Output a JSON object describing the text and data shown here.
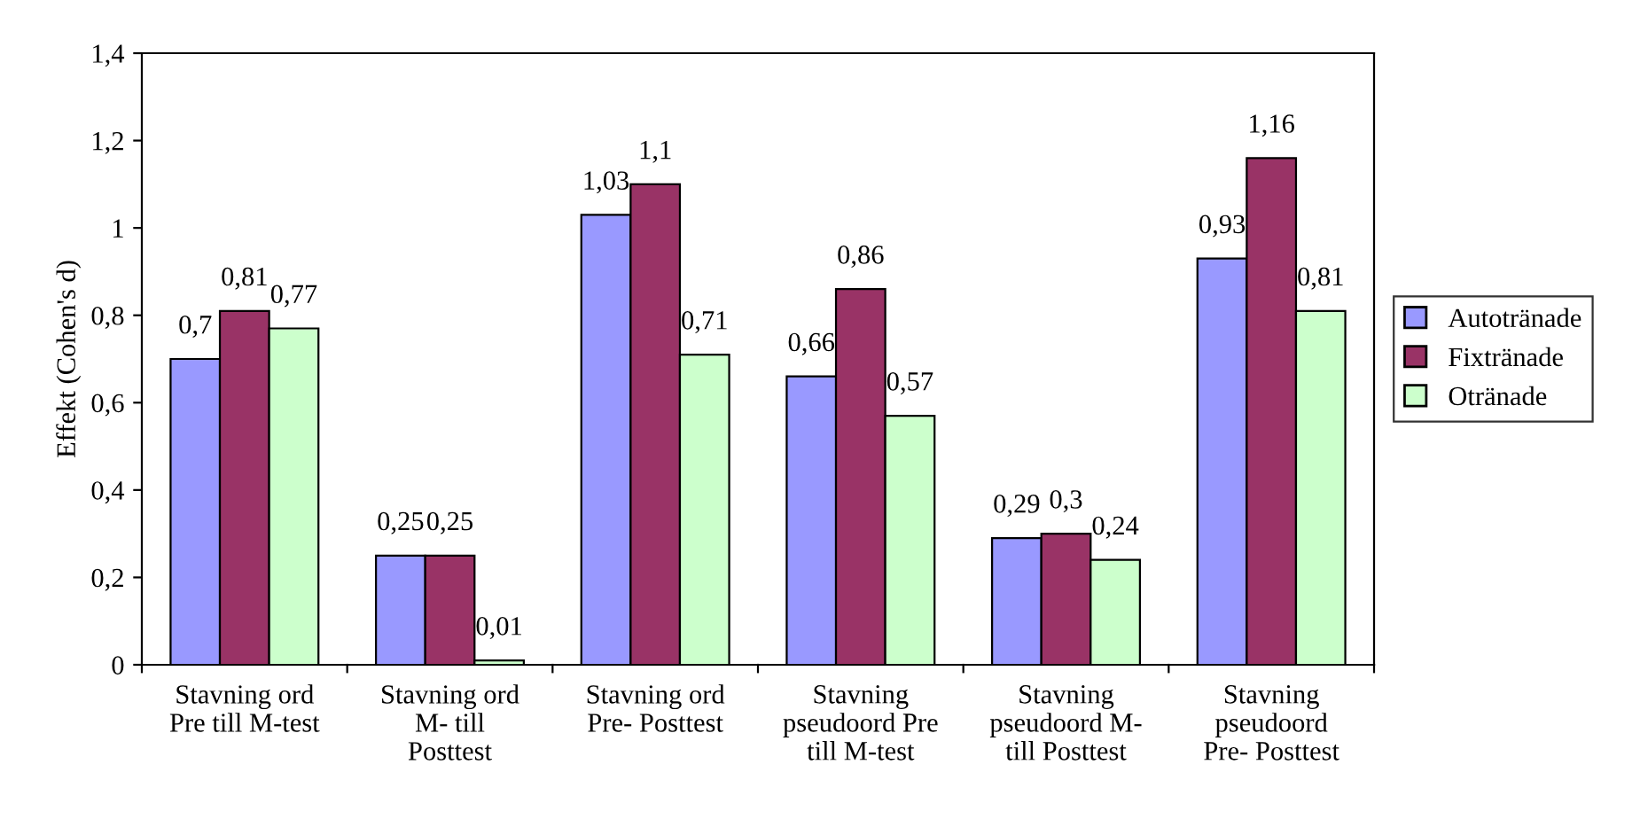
{
  "chart_data": {
    "type": "bar",
    "ylabel": "Effekt (Cohen's d)",
    "categories": [
      "Stavning ord\nPre till M-test",
      "Stavning ord\nM- till\nPosttest",
      "Stavning ord\nPre- Posttest",
      "Stavning\npseudoord Pre\ntill M-test",
      "Stavning\npseudoord M-\ntill Posttest",
      "Stavning\npseudoord\nPre- Posttest"
    ],
    "series": [
      {
        "name": "Autotränade",
        "color": "#9999ff",
        "values": [
          0.7,
          0.25,
          1.03,
          0.66,
          0.29,
          0.93
        ],
        "value_labels": [
          "0,7",
          "0,25",
          "1,03",
          "0,66",
          "0,29",
          "0,93"
        ]
      },
      {
        "name": "Fixtränade",
        "color": "#993366",
        "values": [
          0.81,
          0.25,
          1.1,
          0.86,
          0.3,
          1.16
        ],
        "value_labels": [
          "0,81",
          "0,25",
          "1,1",
          "0,86",
          "0,3",
          "1,16"
        ]
      },
      {
        "name": "Otränade",
        "color": "#ccffcc",
        "values": [
          0.77,
          0.01,
          0.71,
          0.57,
          0.24,
          0.81
        ],
        "value_labels": [
          "0,77",
          "0,01",
          "0,71",
          "0,57",
          "0,24",
          "0,81"
        ]
      }
    ],
    "ylim": [
      0,
      1.4
    ],
    "yticks": [
      0,
      {
        "value": 0.2,
        "label": "0,2"
      },
      {
        "value": 0.4,
        "label": "0,4"
      },
      {
        "value": 0.6,
        "label": "0,6"
      },
      {
        "value": 0.8,
        "label": "0,8"
      },
      1,
      {
        "value": 1.2,
        "label": "1,2"
      },
      {
        "value": 1.4,
        "label": "1,4"
      }
    ],
    "grid": false,
    "legend": "right"
  }
}
